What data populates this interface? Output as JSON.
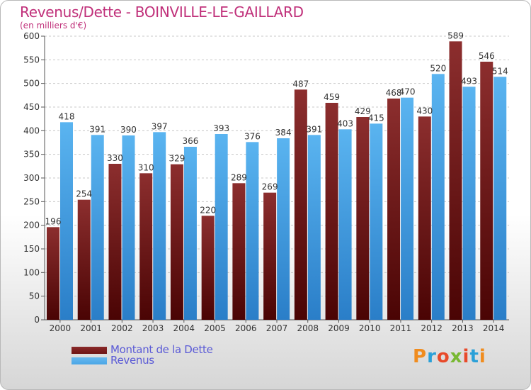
{
  "header": {
    "title": "Revenus/Dette - BOINVILLE-LE-GAILLARD",
    "subtitle": "(en milliers d'€)"
  },
  "colors": {
    "title": "#c0307a",
    "dette": "#7a2020",
    "revenus": "#4da8e8",
    "legend_text": "#5a5ad6",
    "grid": "#c8c8c8"
  },
  "legend": {
    "items": [
      {
        "label": "Montant de la Dette",
        "color": "#6e1414"
      },
      {
        "label": "Revenus",
        "color": "#4aa6e6"
      }
    ]
  },
  "brand": {
    "letters": [
      "P",
      "r",
      "o",
      "x",
      "i",
      "t",
      "i"
    ],
    "colors": [
      "#f08c1e",
      "#2aa0d8",
      "#e84a2a",
      "#78b832",
      "#e84a2a",
      "#2aa0d8",
      "#f08c1e"
    ]
  },
  "chart_data": {
    "type": "bar",
    "categories": [
      "2000",
      "2001",
      "2002",
      "2003",
      "2004",
      "2005",
      "2006",
      "2007",
      "2008",
      "2009",
      "2010",
      "2011",
      "2012",
      "2013",
      "2014"
    ],
    "series": [
      {
        "name": "Montant de la Dette",
        "values": [
          196,
          254,
          330,
          310,
          329,
          220,
          289,
          269,
          487,
          459,
          429,
          468,
          430,
          589,
          546
        ]
      },
      {
        "name": "Revenus",
        "values": [
          418,
          391,
          390,
          397,
          366,
          393,
          376,
          384,
          391,
          403,
          415,
          470,
          520,
          493,
          514
        ]
      }
    ],
    "yticks": [
      "0",
      "50",
      "100",
      "150",
      "200",
      "250",
      "300",
      "350",
      "400",
      "450",
      "500",
      "550",
      "600"
    ],
    "ylim": [
      0,
      600
    ],
    "grid": true,
    "legend_position": "bottom-left"
  }
}
